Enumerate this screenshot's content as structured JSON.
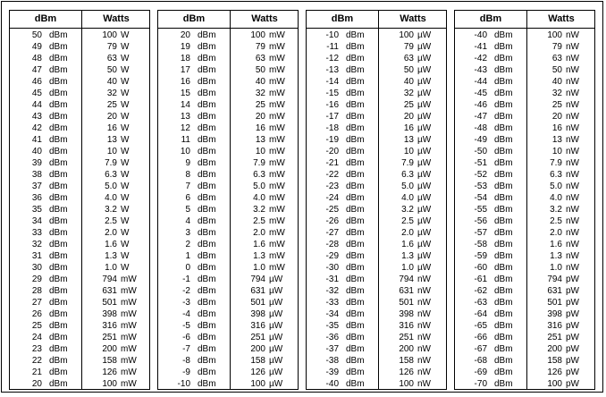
{
  "headers": {
    "dbm": "dBm",
    "watts": "Watts"
  },
  "tables": [
    {
      "rows": [
        {
          "dbm": "50",
          "dbm_unit": "dBm",
          "watts": "100",
          "watts_unit": "W"
        },
        {
          "dbm": "49",
          "dbm_unit": "dBm",
          "watts": "79",
          "watts_unit": "W"
        },
        {
          "dbm": "48",
          "dbm_unit": "dBm",
          "watts": "63",
          "watts_unit": "W"
        },
        {
          "dbm": "47",
          "dbm_unit": "dBm",
          "watts": "50",
          "watts_unit": "W"
        },
        {
          "dbm": "46",
          "dbm_unit": "dBm",
          "watts": "40",
          "watts_unit": "W"
        },
        {
          "dbm": "45",
          "dbm_unit": "dBm",
          "watts": "32",
          "watts_unit": "W"
        },
        {
          "dbm": "44",
          "dbm_unit": "dBm",
          "watts": "25",
          "watts_unit": "W"
        },
        {
          "dbm": "43",
          "dbm_unit": "dBm",
          "watts": "20",
          "watts_unit": "W"
        },
        {
          "dbm": "42",
          "dbm_unit": "dBm",
          "watts": "16",
          "watts_unit": "W"
        },
        {
          "dbm": "41",
          "dbm_unit": "dBm",
          "watts": "13",
          "watts_unit": "W"
        },
        {
          "dbm": "40",
          "dbm_unit": "dBm",
          "watts": "10",
          "watts_unit": "W"
        },
        {
          "dbm": "39",
          "dbm_unit": "dBm",
          "watts": "7.9",
          "watts_unit": "W"
        },
        {
          "dbm": "38",
          "dbm_unit": "dBm",
          "watts": "6.3",
          "watts_unit": "W"
        },
        {
          "dbm": "37",
          "dbm_unit": "dBm",
          "watts": "5.0",
          "watts_unit": "W"
        },
        {
          "dbm": "36",
          "dbm_unit": "dBm",
          "watts": "4.0",
          "watts_unit": "W"
        },
        {
          "dbm": "35",
          "dbm_unit": "dBm",
          "watts": "3.2",
          "watts_unit": "W"
        },
        {
          "dbm": "34",
          "dbm_unit": "dBm",
          "watts": "2.5",
          "watts_unit": "W"
        },
        {
          "dbm": "33",
          "dbm_unit": "dBm",
          "watts": "2.0",
          "watts_unit": "W"
        },
        {
          "dbm": "32",
          "dbm_unit": "dBm",
          "watts": "1.6",
          "watts_unit": "W"
        },
        {
          "dbm": "31",
          "dbm_unit": "dBm",
          "watts": "1.3",
          "watts_unit": "W"
        },
        {
          "dbm": "30",
          "dbm_unit": "dBm",
          "watts": "1.0",
          "watts_unit": "W"
        },
        {
          "dbm": "29",
          "dbm_unit": "dBm",
          "watts": "794",
          "watts_unit": "mW"
        },
        {
          "dbm": "28",
          "dbm_unit": "dBm",
          "watts": "631",
          "watts_unit": "mW"
        },
        {
          "dbm": "27",
          "dbm_unit": "dBm",
          "watts": "501",
          "watts_unit": "mW"
        },
        {
          "dbm": "26",
          "dbm_unit": "dBm",
          "watts": "398",
          "watts_unit": "mW"
        },
        {
          "dbm": "25",
          "dbm_unit": "dBm",
          "watts": "316",
          "watts_unit": "mW"
        },
        {
          "dbm": "24",
          "dbm_unit": "dBm",
          "watts": "251",
          "watts_unit": "mW"
        },
        {
          "dbm": "23",
          "dbm_unit": "dBm",
          "watts": "200",
          "watts_unit": "mW"
        },
        {
          "dbm": "22",
          "dbm_unit": "dBm",
          "watts": "158",
          "watts_unit": "mW"
        },
        {
          "dbm": "21",
          "dbm_unit": "dBm",
          "watts": "126",
          "watts_unit": "mW"
        },
        {
          "dbm": "20",
          "dbm_unit": "dBm",
          "watts": "100",
          "watts_unit": "mW"
        }
      ]
    },
    {
      "rows": [
        {
          "dbm": "20",
          "dbm_unit": "dBm",
          "watts": "100",
          "watts_unit": "mW"
        },
        {
          "dbm": "19",
          "dbm_unit": "dBm",
          "watts": "79",
          "watts_unit": "mW"
        },
        {
          "dbm": "18",
          "dbm_unit": "dBm",
          "watts": "63",
          "watts_unit": "mW"
        },
        {
          "dbm": "17",
          "dbm_unit": "dBm",
          "watts": "50",
          "watts_unit": "mW"
        },
        {
          "dbm": "16",
          "dbm_unit": "dBm",
          "watts": "40",
          "watts_unit": "mW"
        },
        {
          "dbm": "15",
          "dbm_unit": "dBm",
          "watts": "32",
          "watts_unit": "mW"
        },
        {
          "dbm": "14",
          "dbm_unit": "dBm",
          "watts": "25",
          "watts_unit": "mW"
        },
        {
          "dbm": "13",
          "dbm_unit": "dBm",
          "watts": "20",
          "watts_unit": "mW"
        },
        {
          "dbm": "12",
          "dbm_unit": "dBm",
          "watts": "16",
          "watts_unit": "mW"
        },
        {
          "dbm": "11",
          "dbm_unit": "dBm",
          "watts": "13",
          "watts_unit": "mW"
        },
        {
          "dbm": "10",
          "dbm_unit": "dBm",
          "watts": "10",
          "watts_unit": "mW"
        },
        {
          "dbm": "9",
          "dbm_unit": "dBm",
          "watts": "7.9",
          "watts_unit": "mW"
        },
        {
          "dbm": "8",
          "dbm_unit": "dBm",
          "watts": "6.3",
          "watts_unit": "mW"
        },
        {
          "dbm": "7",
          "dbm_unit": "dBm",
          "watts": "5.0",
          "watts_unit": "mW"
        },
        {
          "dbm": "6",
          "dbm_unit": "dBm",
          "watts": "4.0",
          "watts_unit": "mW"
        },
        {
          "dbm": "5",
          "dbm_unit": "dBm",
          "watts": "3.2",
          "watts_unit": "mW"
        },
        {
          "dbm": "4",
          "dbm_unit": "dBm",
          "watts": "2.5",
          "watts_unit": "mW"
        },
        {
          "dbm": "3",
          "dbm_unit": "dBm",
          "watts": "2.0",
          "watts_unit": "mW"
        },
        {
          "dbm": "2",
          "dbm_unit": "dBm",
          "watts": "1.6",
          "watts_unit": "mW"
        },
        {
          "dbm": "1",
          "dbm_unit": "dBm",
          "watts": "1.3",
          "watts_unit": "mW"
        },
        {
          "dbm": "0",
          "dbm_unit": "dBm",
          "watts": "1.0",
          "watts_unit": "mW"
        },
        {
          "dbm": "-1",
          "dbm_unit": "dBm",
          "watts": "794",
          "watts_unit": "µW"
        },
        {
          "dbm": "-2",
          "dbm_unit": "dBm",
          "watts": "631",
          "watts_unit": "µW"
        },
        {
          "dbm": "-3",
          "dbm_unit": "dBm",
          "watts": "501",
          "watts_unit": "µW"
        },
        {
          "dbm": "-4",
          "dbm_unit": "dBm",
          "watts": "398",
          "watts_unit": "µW"
        },
        {
          "dbm": "-5",
          "dbm_unit": "dBm",
          "watts": "316",
          "watts_unit": "µW"
        },
        {
          "dbm": "-6",
          "dbm_unit": "dBm",
          "watts": "251",
          "watts_unit": "µW"
        },
        {
          "dbm": "-7",
          "dbm_unit": "dBm",
          "watts": "200",
          "watts_unit": "µW"
        },
        {
          "dbm": "-8",
          "dbm_unit": "dBm",
          "watts": "158",
          "watts_unit": "µW"
        },
        {
          "dbm": "-9",
          "dbm_unit": "dBm",
          "watts": "126",
          "watts_unit": "µW"
        },
        {
          "dbm": "-10",
          "dbm_unit": "dBm",
          "watts": "100",
          "watts_unit": "µW"
        }
      ]
    },
    {
      "rows": [
        {
          "dbm": "-10",
          "dbm_unit": "dBm",
          "watts": "100",
          "watts_unit": "µW"
        },
        {
          "dbm": "-11",
          "dbm_unit": "dBm",
          "watts": "79",
          "watts_unit": "µW"
        },
        {
          "dbm": "-12",
          "dbm_unit": "dBm",
          "watts": "63",
          "watts_unit": "µW"
        },
        {
          "dbm": "-13",
          "dbm_unit": "dBm",
          "watts": "50",
          "watts_unit": "µW"
        },
        {
          "dbm": "-14",
          "dbm_unit": "dBm",
          "watts": "40",
          "watts_unit": "µW"
        },
        {
          "dbm": "-15",
          "dbm_unit": "dBm",
          "watts": "32",
          "watts_unit": "µW"
        },
        {
          "dbm": "-16",
          "dbm_unit": "dBm",
          "watts": "25",
          "watts_unit": "µW"
        },
        {
          "dbm": "-17",
          "dbm_unit": "dBm",
          "watts": "20",
          "watts_unit": "µW"
        },
        {
          "dbm": "-18",
          "dbm_unit": "dBm",
          "watts": "16",
          "watts_unit": "µW"
        },
        {
          "dbm": "-19",
          "dbm_unit": "dBm",
          "watts": "13",
          "watts_unit": "µW"
        },
        {
          "dbm": "-20",
          "dbm_unit": "dBm",
          "watts": "10",
          "watts_unit": "µW"
        },
        {
          "dbm": "-21",
          "dbm_unit": "dBm",
          "watts": "7.9",
          "watts_unit": "µW"
        },
        {
          "dbm": "-22",
          "dbm_unit": "dBm",
          "watts": "6.3",
          "watts_unit": "µW"
        },
        {
          "dbm": "-23",
          "dbm_unit": "dBm",
          "watts": "5.0",
          "watts_unit": "µW"
        },
        {
          "dbm": "-24",
          "dbm_unit": "dBm",
          "watts": "4.0",
          "watts_unit": "µW"
        },
        {
          "dbm": "-25",
          "dbm_unit": "dBm",
          "watts": "3.2",
          "watts_unit": "µW"
        },
        {
          "dbm": "-26",
          "dbm_unit": "dBm",
          "watts": "2.5",
          "watts_unit": "µW"
        },
        {
          "dbm": "-27",
          "dbm_unit": "dBm",
          "watts": "2.0",
          "watts_unit": "µW"
        },
        {
          "dbm": "-28",
          "dbm_unit": "dBm",
          "watts": "1.6",
          "watts_unit": "µW"
        },
        {
          "dbm": "-29",
          "dbm_unit": "dBm",
          "watts": "1.3",
          "watts_unit": "µW"
        },
        {
          "dbm": "-30",
          "dbm_unit": "dBm",
          "watts": "1.0",
          "watts_unit": "µW"
        },
        {
          "dbm": "-31",
          "dbm_unit": "dBm",
          "watts": "794",
          "watts_unit": "nW"
        },
        {
          "dbm": "-32",
          "dbm_unit": "dBm",
          "watts": "631",
          "watts_unit": "nW"
        },
        {
          "dbm": "-33",
          "dbm_unit": "dBm",
          "watts": "501",
          "watts_unit": "nW"
        },
        {
          "dbm": "-34",
          "dbm_unit": "dBm",
          "watts": "398",
          "watts_unit": "nW"
        },
        {
          "dbm": "-35",
          "dbm_unit": "dBm",
          "watts": "316",
          "watts_unit": "nW"
        },
        {
          "dbm": "-36",
          "dbm_unit": "dBm",
          "watts": "251",
          "watts_unit": "nW"
        },
        {
          "dbm": "-37",
          "dbm_unit": "dBm",
          "watts": "200",
          "watts_unit": "nW"
        },
        {
          "dbm": "-38",
          "dbm_unit": "dBm",
          "watts": "158",
          "watts_unit": "nW"
        },
        {
          "dbm": "-39",
          "dbm_unit": "dBm",
          "watts": "126",
          "watts_unit": "nW"
        },
        {
          "dbm": "-40",
          "dbm_unit": "dBm",
          "watts": "100",
          "watts_unit": "nW"
        }
      ]
    },
    {
      "rows": [
        {
          "dbm": "-40",
          "dbm_unit": "dBm",
          "watts": "100",
          "watts_unit": "nW"
        },
        {
          "dbm": "-41",
          "dbm_unit": "dBm",
          "watts": "79",
          "watts_unit": "nW"
        },
        {
          "dbm": "-42",
          "dbm_unit": "dBm",
          "watts": "63",
          "watts_unit": "nW"
        },
        {
          "dbm": "-43",
          "dbm_unit": "dBm",
          "watts": "50",
          "watts_unit": "nW"
        },
        {
          "dbm": "-44",
          "dbm_unit": "dBm",
          "watts": "40",
          "watts_unit": "nW"
        },
        {
          "dbm": "-45",
          "dbm_unit": "dBm",
          "watts": "32",
          "watts_unit": "nW"
        },
        {
          "dbm": "-46",
          "dbm_unit": "dBm",
          "watts": "25",
          "watts_unit": "nW"
        },
        {
          "dbm": "-47",
          "dbm_unit": "dBm",
          "watts": "20",
          "watts_unit": "nW"
        },
        {
          "dbm": "-48",
          "dbm_unit": "dBm",
          "watts": "16",
          "watts_unit": "nW"
        },
        {
          "dbm": "-49",
          "dbm_unit": "dBm",
          "watts": "13",
          "watts_unit": "nW"
        },
        {
          "dbm": "-50",
          "dbm_unit": "dBm",
          "watts": "10",
          "watts_unit": "nW"
        },
        {
          "dbm": "-51",
          "dbm_unit": "dBm",
          "watts": "7.9",
          "watts_unit": "nW"
        },
        {
          "dbm": "-52",
          "dbm_unit": "dBm",
          "watts": "6.3",
          "watts_unit": "nW"
        },
        {
          "dbm": "-53",
          "dbm_unit": "dBm",
          "watts": "5.0",
          "watts_unit": "nW"
        },
        {
          "dbm": "-54",
          "dbm_unit": "dBm",
          "watts": "4.0",
          "watts_unit": "nW"
        },
        {
          "dbm": "-55",
          "dbm_unit": "dBm",
          "watts": "3.2",
          "watts_unit": "nW"
        },
        {
          "dbm": "-56",
          "dbm_unit": "dBm",
          "watts": "2.5",
          "watts_unit": "nW"
        },
        {
          "dbm": "-57",
          "dbm_unit": "dBm",
          "watts": "2.0",
          "watts_unit": "nW"
        },
        {
          "dbm": "-58",
          "dbm_unit": "dBm",
          "watts": "1.6",
          "watts_unit": "nW"
        },
        {
          "dbm": "-59",
          "dbm_unit": "dBm",
          "watts": "1.3",
          "watts_unit": "nW"
        },
        {
          "dbm": "-60",
          "dbm_unit": "dBm",
          "watts": "1.0",
          "watts_unit": "nW"
        },
        {
          "dbm": "-61",
          "dbm_unit": "dBm",
          "watts": "794",
          "watts_unit": "pW"
        },
        {
          "dbm": "-62",
          "dbm_unit": "dBm",
          "watts": "631",
          "watts_unit": "pW"
        },
        {
          "dbm": "-63",
          "dbm_unit": "dBm",
          "watts": "501",
          "watts_unit": "pW"
        },
        {
          "dbm": "-64",
          "dbm_unit": "dBm",
          "watts": "398",
          "watts_unit": "pW"
        },
        {
          "dbm": "-65",
          "dbm_unit": "dBm",
          "watts": "316",
          "watts_unit": "pW"
        },
        {
          "dbm": "-66",
          "dbm_unit": "dBm",
          "watts": "251",
          "watts_unit": "pW"
        },
        {
          "dbm": "-67",
          "dbm_unit": "dBm",
          "watts": "200",
          "watts_unit": "pW"
        },
        {
          "dbm": "-68",
          "dbm_unit": "dBm",
          "watts": "158",
          "watts_unit": "pW"
        },
        {
          "dbm": "-69",
          "dbm_unit": "dBm",
          "watts": "126",
          "watts_unit": "pW"
        },
        {
          "dbm": "-70",
          "dbm_unit": "dBm",
          "watts": "100",
          "watts_unit": "pW"
        }
      ]
    }
  ]
}
